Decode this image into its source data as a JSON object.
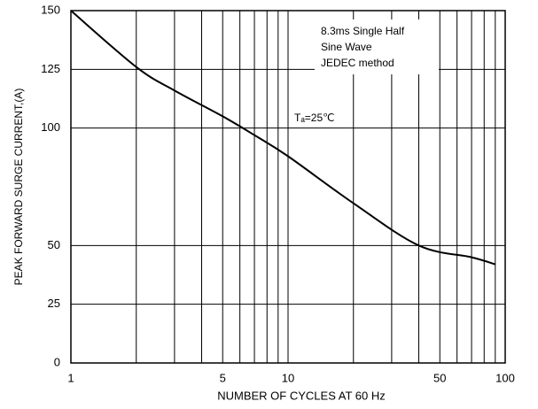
{
  "chart_data": {
    "type": "line",
    "xlabel": "NUMBER OF CYCLES AT 60 Hz",
    "ylabel": "PEAK FORWARD SURGE CURRENT,(A)",
    "annotations": [
      "8.3ms Single Half",
      "Sine Wave",
      "JEDEC method",
      "Tₐ=25℃"
    ],
    "x": [
      1,
      2,
      3,
      5,
      7,
      10,
      20,
      40,
      70,
      90
    ],
    "series": [
      {
        "color": "#000000",
        "values": [
          150,
          126,
          116,
          105,
          97,
          88,
          68,
          50,
          45,
          42
        ]
      }
    ],
    "xscale": "log",
    "xlim": [
      1,
      100
    ],
    "xticks": [
      1,
      5,
      10,
      50,
      100
    ],
    "xgrid": [
      2,
      3,
      4,
      6,
      7,
      8,
      9,
      20,
      30,
      40,
      60,
      70,
      80,
      90
    ],
    "ylim": [
      0,
      150
    ],
    "yticks": [
      0,
      25,
      50,
      100,
      125,
      150
    ],
    "grid": true
  }
}
